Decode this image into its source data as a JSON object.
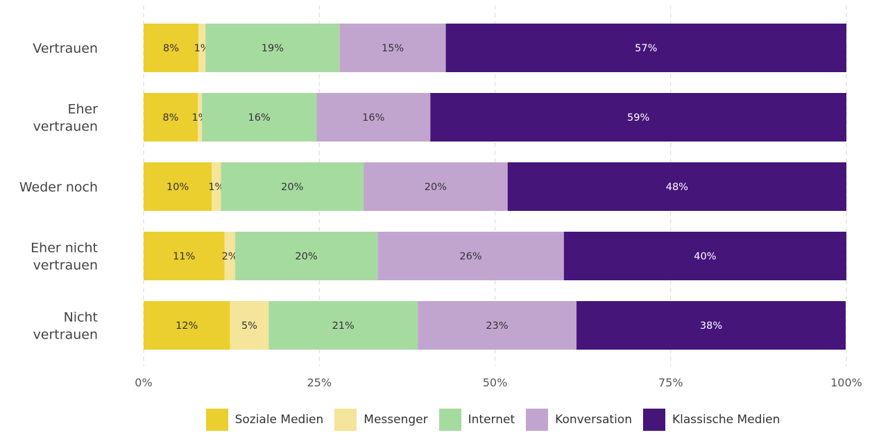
{
  "chart_data": {
    "type": "bar",
    "orientation": "horizontal",
    "stacked": true,
    "categories": [
      [
        "Vertrauen"
      ],
      [
        "Eher",
        "vertrauen"
      ],
      [
        "Weder noch"
      ],
      [
        "Eher nicht",
        "vertrauen"
      ],
      [
        "Nicht",
        "vertrauen"
      ]
    ],
    "series": [
      {
        "name": "Soziale Medien",
        "color": "#ebcf2e",
        "label_color": "#333333",
        "values": [
          7.8,
          7.7,
          9.7,
          11.5,
          12.3
        ],
        "labels": [
          "8%",
          "8%",
          "10%",
          "11%",
          "12%"
        ]
      },
      {
        "name": "Messenger",
        "color": "#f5e59a",
        "label_color": "#333333",
        "values": [
          1.0,
          0.6,
          1.3,
          1.5,
          5.5
        ],
        "labels": [
          "1%",
          "1%",
          "1%",
          "2%",
          "5%"
        ]
      },
      {
        "name": "Internet",
        "color": "#a6dba0",
        "label_color": "#333333",
        "values": [
          19.1,
          16.3,
          20.3,
          20.3,
          21.2
        ],
        "labels": [
          "19%",
          "16%",
          "20%",
          "20%",
          "21%"
        ]
      },
      {
        "name": "Konversation",
        "color": "#c2a5cf",
        "label_color": "#333333",
        "values": [
          15.1,
          16.2,
          20.5,
          26.5,
          22.6
        ],
        "labels": [
          "15%",
          "16%",
          "20%",
          "26%",
          "23%"
        ]
      },
      {
        "name": "Klassische Medien",
        "color": "#45157a",
        "label_color": "#ffffff",
        "values": [
          57.0,
          59.2,
          48.2,
          40.2,
          38.3
        ],
        "labels": [
          "57%",
          "59%",
          "48%",
          "40%",
          "38%"
        ]
      }
    ],
    "xlim": [
      0,
      100
    ],
    "xticks": [
      0,
      25,
      50,
      75,
      100
    ],
    "xtick_labels": [
      "0%",
      "25%",
      "50%",
      "75%",
      "100%"
    ],
    "grid": "vertical dashed",
    "legend_position": "bottom"
  }
}
